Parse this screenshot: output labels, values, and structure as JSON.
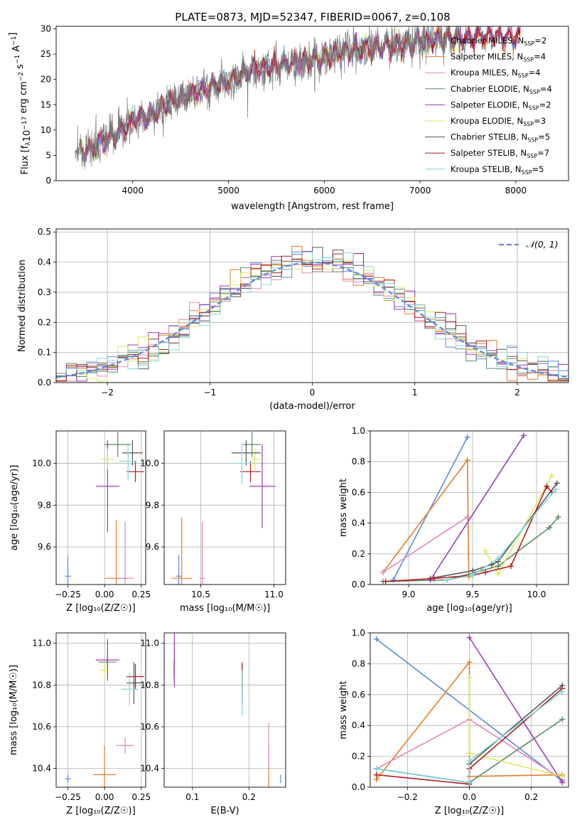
{
  "figure_title": "PLATE=0873, MJD=52347, FIBERID=0067, z=0.108",
  "colors": {
    "c0": "#5b8bd9",
    "c1": "#e07e2a",
    "c2": "#e387c0",
    "c3": "#5c8a62",
    "c4": "#9e3ab8",
    "c5": "#d9e85a",
    "c6": "#555555",
    "c7": "#b01c1c",
    "c8": "#7fd6dd"
  },
  "chart_data": [
    {
      "id": "spectrum",
      "type": "line",
      "title": "PLATE=0873, MJD=52347, FIBERID=0067, z=0.108",
      "xlabel": "wavelength [Angstrom, rest frame]",
      "ylabel_parts": [
        "Flux [f",
        "λ",
        "10",
        "−17",
        " erg cm",
        "−2",
        " s",
        "−1",
        " A",
        "−1",
        "]"
      ],
      "xlim": [
        3200,
        8550
      ],
      "ylim": [
        0,
        30.5
      ],
      "xticks": [
        4000,
        5000,
        6000,
        7000,
        8000
      ],
      "yticks": [
        0,
        5,
        10,
        15,
        20,
        25,
        30
      ],
      "grid": false,
      "legend_position": "top-right",
      "continuum_x": [
        3450,
        3600,
        3700,
        3850,
        3950,
        4000,
        4200,
        4400,
        4600,
        4800,
        5000,
        5200,
        5400,
        5600,
        5800,
        6000,
        6200,
        6400,
        6600,
        6800,
        7000,
        7200,
        7400,
        7600,
        7800,
        8000,
        8050
      ],
      "continuum_y": [
        6,
        6.5,
        8,
        9.5,
        10.5,
        12,
        13,
        15.5,
        17,
        18.5,
        19.5,
        21.5,
        22.5,
        23,
        23.5,
        24.5,
        25.5,
        26,
        26.5,
        27,
        27.5,
        28,
        28,
        28.5,
        28.5,
        28.5,
        28.5
      ],
      "data_range": [
        3400,
        7420
      ],
      "model_range": [
        3450,
        8050
      ],
      "series": [
        {
          "name": "Chabrier MILES",
          "nssp": "2",
          "color": "c0"
        },
        {
          "name": "Salpeter MILES",
          "nssp": "4",
          "color": "c1"
        },
        {
          "name": "Kroupa MILES",
          "nssp": "4",
          "color": "c2"
        },
        {
          "name": "Chabrier ELODIE",
          "nssp": "4",
          "color": "c3"
        },
        {
          "name": "Salpeter ELODIE",
          "nssp": "2",
          "color": "c4"
        },
        {
          "name": "Kroupa ELODIE",
          "nssp": "3",
          "color": "c5"
        },
        {
          "name": "Chabrier STELIB",
          "nssp": "5",
          "color": "c6"
        },
        {
          "name": "Salpeter STELIB",
          "nssp": "7",
          "color": "c7"
        },
        {
          "name": "Kroupa STELIB",
          "nssp": "5",
          "color": "c8"
        }
      ],
      "nssp_label": "SSP"
    },
    {
      "id": "residuals",
      "type": "histogram",
      "xlabel": "(data-model)/error",
      "ylabel": "Normed distribution",
      "xlim": [
        -2.5,
        2.5
      ],
      "ylim": [
        0,
        0.51
      ],
      "xticks": [
        -2,
        -1,
        0,
        1,
        2
      ],
      "yticks": [
        0.0,
        0.1,
        0.2,
        0.3,
        0.4,
        0.5
      ],
      "xtick_labels": [
        "−2",
        "−1",
        "0",
        "1",
        "2"
      ],
      "grid": true,
      "bin_width": 0.1,
      "reference_curve": {
        "name": "𝒩(0, 1)",
        "mean": 0,
        "sigma": 1,
        "color": "c0"
      },
      "legend_position": "top-right"
    },
    {
      "id": "age_vs_Z",
      "type": "errorbar",
      "xlabel": "Z [log₁₀(Z/Z☉)]",
      "ylabel": "age  [log₁₀(age/yr)]",
      "xlim": [
        -0.33,
        0.28
      ],
      "ylim": [
        9.42,
        10.155
      ],
      "xticks": [
        -0.25,
        0.0,
        0.25
      ],
      "xtick_labels": [
        "−0.25",
        "0.00",
        "0.25"
      ],
      "yticks": [
        9.6,
        9.8,
        10.0
      ],
      "grid": true,
      "points": [
        {
          "x": -0.25,
          "y": 9.46,
          "xerr": 0.02,
          "yerr": 0.1,
          "color": "c0"
        },
        {
          "x": 0.08,
          "y": 9.45,
          "xerr": 0.08,
          "yerr": 0.28,
          "color": "c1"
        },
        {
          "x": 0.14,
          "y": 9.45,
          "xerr": 0.06,
          "yerr": 0.27,
          "color": "c2"
        },
        {
          "x": 0.09,
          "y": 10.09,
          "xerr": 0.09,
          "yerr": 0.06,
          "color": "c3"
        },
        {
          "x": 0.02,
          "y": 9.89,
          "xerr": 0.08,
          "yerr": 0.22,
          "color": "c4"
        },
        {
          "x": 0.02,
          "y": 10.02,
          "xerr": 0.04,
          "yerr": 0.05,
          "color": "c5"
        },
        {
          "x": 0.19,
          "y": 10.05,
          "xerr": 0.07,
          "yerr": 0.06,
          "color": "c6"
        },
        {
          "x": 0.21,
          "y": 9.96,
          "xerr": 0.06,
          "yerr": 0.05,
          "color": "c7"
        },
        {
          "x": 0.16,
          "y": 10.01,
          "xerr": 0.06,
          "yerr": 0.09,
          "color": "c8"
        }
      ]
    },
    {
      "id": "age_vs_mass",
      "type": "errorbar",
      "xlabel": "mass [log₁₀(M/M☉)]",
      "xlim": [
        10.25,
        11.08
      ],
      "ylim": [
        9.42,
        10.155
      ],
      "xticks": [
        10.5,
        11.0
      ],
      "xtick_labels": [
        "10.5",
        "11.0"
      ],
      "yticks": [
        9.6,
        9.8,
        10.0
      ],
      "grid": true,
      "points": [
        {
          "x": 10.35,
          "y": 9.46,
          "xerr": 0.02,
          "yerr": 0.1,
          "color": "c0"
        },
        {
          "x": 10.37,
          "y": 9.45,
          "xerr": 0.07,
          "yerr": 0.29,
          "color": "c1"
        },
        {
          "x": 10.51,
          "y": 9.45,
          "xerr": 0.02,
          "yerr": 0.27,
          "color": "c2"
        },
        {
          "x": 10.85,
          "y": 10.09,
          "xerr": 0.06,
          "yerr": 0.06,
          "color": "c3"
        },
        {
          "x": 10.92,
          "y": 9.89,
          "xerr": 0.09,
          "yerr": 0.2,
          "color": "c4"
        },
        {
          "x": 10.87,
          "y": 10.02,
          "xerr": 0.04,
          "yerr": 0.05,
          "color": "c5"
        },
        {
          "x": 10.81,
          "y": 10.05,
          "xerr": 0.1,
          "yerr": 0.06,
          "color": "c6"
        },
        {
          "x": 10.84,
          "y": 9.96,
          "xerr": 0.07,
          "yerr": 0.05,
          "color": "c7"
        },
        {
          "x": 10.78,
          "y": 10.0,
          "xerr": 0.08,
          "yerr": 0.1,
          "color": "c8"
        }
      ]
    },
    {
      "id": "weight_vs_age",
      "type": "line",
      "xlabel": "age  [log₁₀(age/yr)]",
      "ylabel": "mass weight",
      "xlim": [
        8.7,
        10.25
      ],
      "ylim": [
        0,
        1.0
      ],
      "xticks": [
        9.0,
        9.5,
        10.0
      ],
      "xtick_labels": [
        "9.0",
        "9.5",
        "10.0"
      ],
      "yticks": [
        0.0,
        0.2,
        0.4,
        0.6,
        0.8,
        1.0
      ],
      "grid": true,
      "series": [
        {
          "color": "c0",
          "x": [
            8.88,
            9.46
          ],
          "y": [
            0.03,
            0.96
          ]
        },
        {
          "color": "c1",
          "x": [
            8.8,
            9.46,
            9.47
          ],
          "y": [
            0.08,
            0.81,
            0.05
          ]
        },
        {
          "color": "c2",
          "x": [
            8.8,
            9.46
          ],
          "y": [
            0.08,
            0.44
          ]
        },
        {
          "color": "c3",
          "x": [
            8.8,
            9.3,
            9.7,
            10.1,
            10.17
          ],
          "y": [
            0.02,
            0.03,
            0.12,
            0.37,
            0.44
          ]
        },
        {
          "color": "c4",
          "x": [
            9.17,
            9.9
          ],
          "y": [
            0.03,
            0.97
          ]
        },
        {
          "color": "c5",
          "x": [
            9.6,
            9.7,
            10.12
          ],
          "y": [
            0.22,
            0.07,
            0.71
          ]
        },
        {
          "color": "c6",
          "x": [
            9.17,
            9.5,
            9.65,
            9.7,
            10.16
          ],
          "y": [
            0.04,
            0.09,
            0.13,
            0.15,
            0.66
          ]
        },
        {
          "color": "c7",
          "x": [
            8.82,
            9.2,
            9.5,
            9.6,
            9.8,
            10.08,
            10.12
          ],
          "y": [
            0.02,
            0.04,
            0.06,
            0.08,
            0.12,
            0.64,
            0.6
          ]
        },
        {
          "color": "c8",
          "x": [
            9.3,
            9.5,
            9.7,
            10.15
          ],
          "y": [
            0.03,
            0.06,
            0.17,
            0.62
          ]
        }
      ]
    },
    {
      "id": "mass_vs_Z",
      "type": "errorbar",
      "xlabel": "Z [log₁₀(Z/Z☉)]",
      "ylabel": "mass [log₁₀(M/M☉)]",
      "xlim": [
        -0.33,
        0.28
      ],
      "ylim": [
        10.31,
        11.05
      ],
      "xticks": [
        -0.25,
        0.0,
        0.25
      ],
      "xtick_labels": [
        "−0.25",
        "0.00",
        "0.25"
      ],
      "yticks": [
        10.4,
        10.6,
        10.8,
        11.0
      ],
      "grid": true,
      "points": [
        {
          "x": -0.25,
          "y": 10.35,
          "xerr": 0.02,
          "yerr": 0.02,
          "color": "c0"
        },
        {
          "x": 0.0,
          "y": 10.37,
          "xerr": 0.08,
          "yerr": 0.14,
          "color": "c1"
        },
        {
          "x": 0.14,
          "y": 10.51,
          "xerr": 0.06,
          "yerr": 0.04,
          "color": "c2"
        },
        {
          "x": 0.02,
          "y": 10.91,
          "xerr": 0.06,
          "yerr": 0.06,
          "color": "c3"
        },
        {
          "x": 0.02,
          "y": 10.92,
          "xerr": 0.08,
          "yerr": 0.1,
          "color": "c4"
        },
        {
          "x": 0.0,
          "y": 10.87,
          "xerr": 0.03,
          "yerr": 0.04,
          "color": "c5"
        },
        {
          "x": 0.2,
          "y": 10.81,
          "xerr": 0.05,
          "yerr": 0.1,
          "color": "c6"
        },
        {
          "x": 0.21,
          "y": 10.84,
          "xerr": 0.06,
          "yerr": 0.06,
          "color": "c7"
        },
        {
          "x": 0.17,
          "y": 10.78,
          "xerr": 0.06,
          "yerr": 0.08,
          "color": "c8"
        }
      ]
    },
    {
      "id": "mass_vs_EBV",
      "type": "errorbar",
      "xlabel": "E(B-V)",
      "xlim": [
        0.05,
        0.265
      ],
      "ylim": [
        10.31,
        11.05
      ],
      "xticks": [
        0.1,
        0.2
      ],
      "xtick_labels": [
        "0.1",
        "0.2"
      ],
      "yticks": [
        10.4,
        10.6,
        10.8,
        11.0
      ],
      "grid": true,
      "points": [
        {
          "x": 0.256,
          "y": 10.35,
          "xerr": 0.0,
          "yerr": 0.02,
          "color": "c0"
        },
        {
          "x": 0.235,
          "y": 10.37,
          "xerr": 0.0,
          "yerr": 0.14,
          "color": "c1"
        },
        {
          "x": 0.235,
          "y": 10.51,
          "xerr": 0.0,
          "yerr": 0.11,
          "color": "c2"
        },
        {
          "x": 0.068,
          "y": 10.91,
          "xerr": 0.0,
          "yerr": 0.06,
          "color": "c3"
        },
        {
          "x": 0.068,
          "y": 10.92,
          "xerr": 0.0,
          "yerr": 0.13,
          "color": "c4"
        },
        {
          "x": 0.066,
          "y": 10.87,
          "xerr": 0.0,
          "yerr": 0.04,
          "color": "c5"
        },
        {
          "x": 0.188,
          "y": 10.81,
          "xerr": 0.0,
          "yerr": 0.1,
          "color": "c6"
        },
        {
          "x": 0.188,
          "y": 10.84,
          "xerr": 0.0,
          "yerr": 0.06,
          "color": "c7"
        },
        {
          "x": 0.188,
          "y": 10.76,
          "xerr": 0.0,
          "yerr": 0.11,
          "color": "c8"
        }
      ]
    },
    {
      "id": "weight_vs_Z",
      "type": "line",
      "xlabel": "Z [log₁₀(Z/Z☉)]",
      "ylabel": "mass weight",
      "xlim": [
        -0.32,
        0.32
      ],
      "ylim": [
        0,
        1.0
      ],
      "xticks": [
        -0.2,
        0.0,
        0.2
      ],
      "xtick_labels": [
        "−0.2",
        "0.0",
        "0.2"
      ],
      "yticks": [
        0.0,
        0.2,
        0.4,
        0.6,
        0.8,
        1.0
      ],
      "grid": true,
      "series": [
        {
          "color": "c0",
          "x": [
            -0.3,
            0.3
          ],
          "y": [
            0.96,
            0.04
          ]
        },
        {
          "color": "c1",
          "x": [
            -0.3,
            0.0,
            0.0,
            0.3
          ],
          "y": [
            0.05,
            0.81,
            0.07,
            0.08
          ]
        },
        {
          "color": "c2",
          "x": [
            -0.3,
            0.0,
            0.3
          ],
          "y": [
            0.12,
            0.44,
            0.05
          ]
        },
        {
          "color": "c3",
          "x": [
            -0.3,
            0.0,
            0.3
          ],
          "y": [
            0.12,
            0.03,
            0.44
          ]
        },
        {
          "color": "c4",
          "x": [
            0.0,
            0.3
          ],
          "y": [
            0.97,
            0.03
          ]
        },
        {
          "color": "c5",
          "x": [
            0.0,
            0.0,
            0.3
          ],
          "y": [
            0.71,
            0.22,
            0.07
          ]
        },
        {
          "color": "c6",
          "x": [
            -0.3,
            0.0,
            0.0,
            0.3
          ],
          "y": [
            0.12,
            0.03,
            0.15,
            0.66
          ]
        },
        {
          "color": "c7",
          "x": [
            -0.3,
            0.0,
            0.0,
            0.3
          ],
          "y": [
            0.08,
            0.02,
            0.12,
            0.64
          ]
        },
        {
          "color": "c8",
          "x": [
            -0.3,
            0.0,
            0.0,
            0.3
          ],
          "y": [
            0.12,
            0.03,
            0.17,
            0.62
          ]
        }
      ]
    }
  ]
}
